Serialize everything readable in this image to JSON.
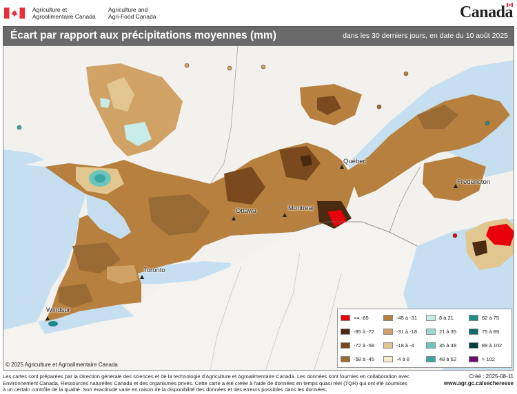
{
  "header": {
    "dept_fr_line1": "Agriculture et",
    "dept_fr_line2": "Agroalimentaire Canada",
    "dept_en_line1": "Agriculture and",
    "dept_en_line2": "Agri-Food Canada",
    "wordmark": "Canada",
    "flag_color": "#eb2d37"
  },
  "title": {
    "main": "Écart par rapport aux précipitations moyennes (mm)",
    "subtitle": "dans les 30 derniers jours, en date du 10 août 2025"
  },
  "map": {
    "cities": [
      {
        "name": "Québec"
      },
      {
        "name": "Fredericton"
      },
      {
        "name": "Ottawa"
      },
      {
        "name": "Montreal"
      },
      {
        "name": "Toronto"
      },
      {
        "name": "Windsor"
      }
    ],
    "copyright": "© 2025 Agriculture et Agroalimentaire Canada"
  },
  "legend": [
    {
      "label": "<= -85",
      "color": "#e8000b"
    },
    {
      "label": "-85 à -72",
      "color": "#4a2a10"
    },
    {
      "label": "-72 à -58",
      "color": "#7a4a1e"
    },
    {
      "label": "-58 à -45",
      "color": "#9a6a34"
    },
    {
      "label": "-45 à -31",
      "color": "#b8803e"
    },
    {
      "label": "-31 à -18",
      "color": "#d0a266"
    },
    {
      "label": "-18 à -4",
      "color": "#e2c690"
    },
    {
      "label": "-4 à 8",
      "color": "#f7ecd2"
    },
    {
      "label": "8 à 21",
      "color": "#c8ece8"
    },
    {
      "label": "21 à 35",
      "color": "#9ad9d2"
    },
    {
      "label": "35 à 48",
      "color": "#6cc4bc"
    },
    {
      "label": "48 à 62",
      "color": "#3aa8a0"
    },
    {
      "label": "62 à 75",
      "color": "#1f8a86"
    },
    {
      "label": "75 à 89",
      "color": "#0e6a68"
    },
    {
      "label": "89 à 102",
      "color": "#073f3e"
    },
    {
      "label": "> 102",
      "color": "#6a0a6e"
    }
  ],
  "footer": {
    "text": "Les cartes sont préparées par la Direction générale des sciences et de la technologie d'Agriculture et Agroalimentaire Canada. Les données sont fournies en collaboration avec Environnement Canada, Ressources naturelles Canada et des organismes privés. Cette carte a été créée à l'aide de données en temps quasi réel (TQR) qui ont été soumises à un certain contrôle de la qualité. Son exactitude varie en raison de la disponibilité des données et des erreurs possibles dans les données.",
    "created": "Créé : 2025-08-11",
    "url": "www.agr.gc.ca/secheresse"
  }
}
